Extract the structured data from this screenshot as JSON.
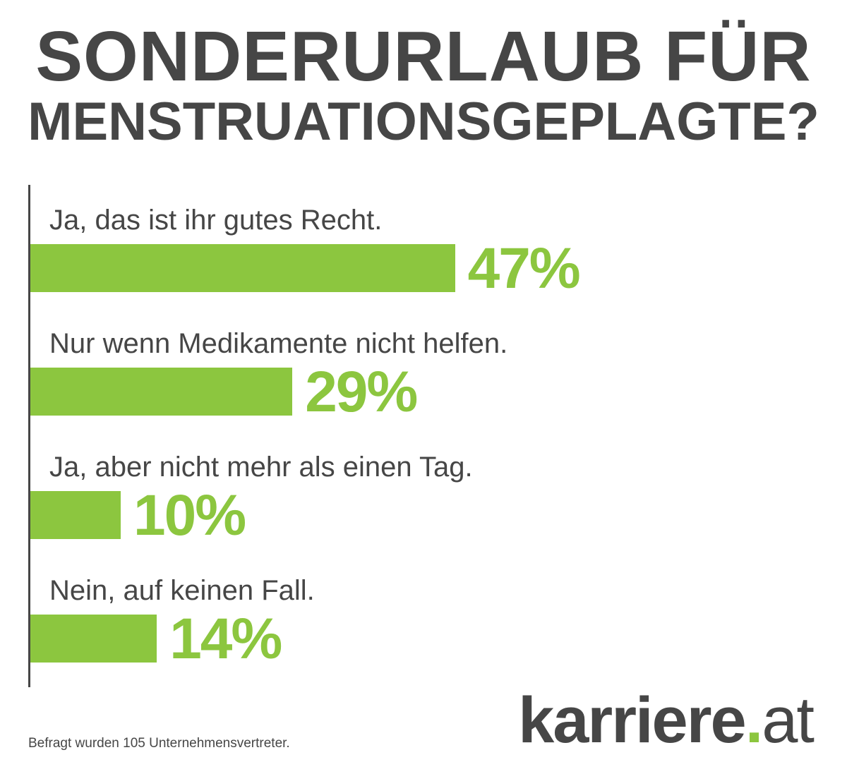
{
  "title": {
    "line1": "SONDERURLAUB FÜR",
    "line2": "MENSTRUATIONSGEPLAGTE?"
  },
  "chart_data": {
    "type": "bar",
    "orientation": "horizontal",
    "title": "SONDERURLAUB FÜR MENSTRUATIONSGEPLAGTE?",
    "categories": [
      "Ja, das ist ihr gutes Recht.",
      "Nur wenn Medikamente nicht helfen.",
      "Ja, aber nicht mehr als einen Tag.",
      "Nein, auf keinen Fall."
    ],
    "values": [
      47,
      29,
      10,
      14
    ],
    "value_labels": [
      "47%",
      "29%",
      "10%",
      "14%"
    ],
    "unit": "%",
    "xlim": [
      0,
      100
    ],
    "xlabel": "",
    "ylabel": "",
    "grid": false,
    "bar_color": "#8cc63f"
  },
  "footnote": "Befragt wurden 105 Unternehmensvertreter.",
  "logo": {
    "name": "karriere",
    "dot": ".",
    "tld": "at"
  },
  "colors": {
    "accent": "#8cc63f",
    "text": "#464646"
  }
}
